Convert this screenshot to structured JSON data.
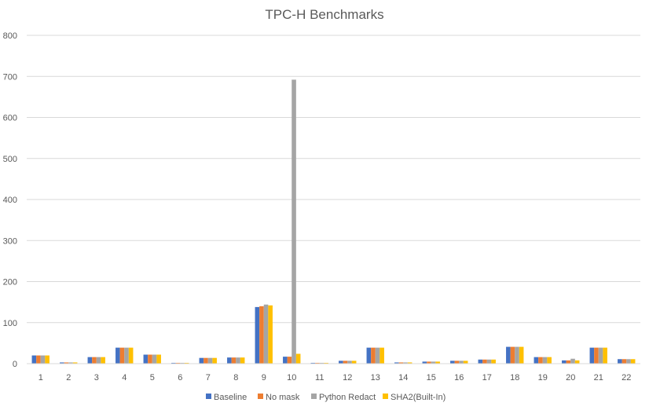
{
  "chart_data": {
    "type": "bar",
    "title": "TPC-H Benchmarks",
    "xlabel": "",
    "ylabel": "",
    "ylim": [
      0,
      800
    ],
    "yticks": [
      "0",
      "100",
      "200",
      "300",
      "400",
      "500",
      "600",
      "700",
      "800"
    ],
    "grid": "horizontal",
    "legend": "bottom",
    "categories": [
      "1",
      "2",
      "3",
      "4",
      "5",
      "6",
      "7",
      "8",
      "9",
      "10",
      "11",
      "12",
      "13",
      "14",
      "15",
      "16",
      "17",
      "18",
      "19",
      "20",
      "21",
      "22"
    ],
    "series": [
      {
        "name": "Baseline",
        "color": "#4472c4",
        "values": [
          20,
          3,
          16,
          39,
          22,
          2,
          14,
          15,
          138,
          17,
          2,
          7,
          39,
          3,
          5,
          7,
          10,
          41,
          16,
          8,
          39,
          11
        ]
      },
      {
        "name": "No mask",
        "color": "#ed7d31",
        "values": [
          20,
          3,
          16,
          39,
          22,
          2,
          14,
          15,
          140,
          17,
          2,
          7,
          39,
          3,
          5,
          7,
          10,
          41,
          16,
          8,
          39,
          11
        ]
      },
      {
        "name": "Python Redact",
        "color": "#a5a5a5",
        "values": [
          20,
          3,
          16,
          39,
          22,
          2,
          14,
          15,
          144,
          692,
          2,
          7,
          39,
          3,
          5,
          7,
          10,
          41,
          16,
          12,
          39,
          11
        ]
      },
      {
        "name": "SHA2(Built-In)",
        "color": "#ffc000",
        "values": [
          20,
          3,
          16,
          39,
          22,
          2,
          14,
          15,
          142,
          24,
          2,
          7,
          39,
          3,
          5,
          7,
          10,
          41,
          16,
          8,
          39,
          11
        ]
      }
    ]
  }
}
